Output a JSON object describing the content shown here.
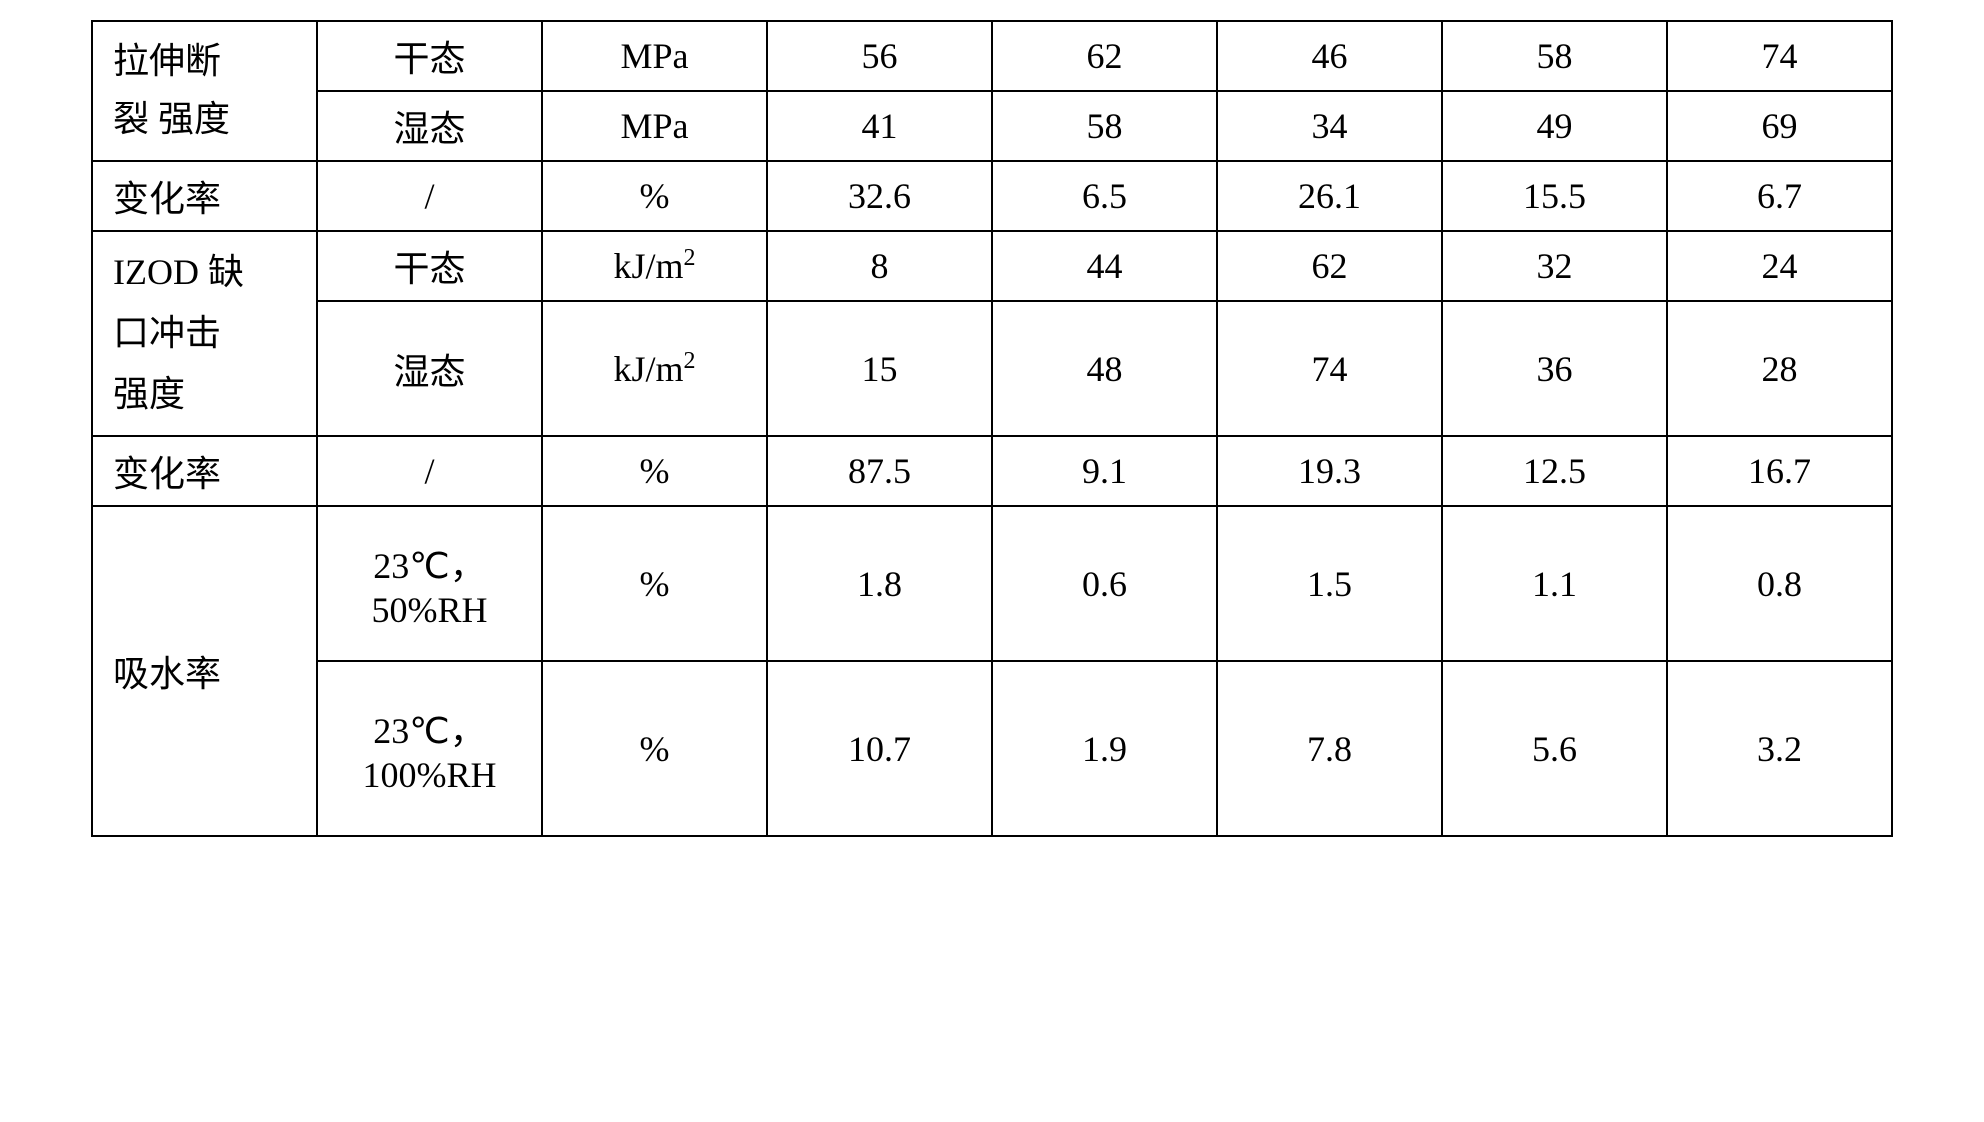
{
  "table": {
    "border_color": "#000000",
    "background_color": "#ffffff",
    "text_color": "#000000",
    "font_size_pt": 27,
    "rows": [
      {
        "property": "拉伸断",
        "condition": "干态",
        "unit": "MPa",
        "c1": "56",
        "c2": "62",
        "c3": "46",
        "c4": "58",
        "c5": "74"
      },
      {
        "property": "裂 强度",
        "condition": "湿态",
        "unit": "MPa",
        "c1": "41",
        "c2": "58",
        "c3": "34",
        "c4": "49",
        "c5": "69"
      },
      {
        "property": "变化率",
        "condition": "/",
        "unit": "%",
        "c1": "32.6",
        "c2": "6.5",
        "c3": "26.1",
        "c4": "15.5",
        "c5": "6.7"
      },
      {
        "property": "IZOD 缺",
        "condition": "干态",
        "unit_html": "kJ/m<sup>2</sup>",
        "c1": "8",
        "c2": "44",
        "c3": "62",
        "c4": "32",
        "c5": "24"
      },
      {
        "property": "口冲击\n强度",
        "condition": "湿态",
        "unit_html": "kJ/m<sup>2</sup>",
        "c1": "15",
        "c2": "48",
        "c3": "74",
        "c4": "36",
        "c5": "28"
      },
      {
        "property": "变化率",
        "condition": "/",
        "unit": "%",
        "c1": "87.5",
        "c2": "9.1",
        "c3": "19.3",
        "c4": "12.5",
        "c5": "16.7"
      },
      {
        "property": "",
        "condition": "23℃，\n50%RH",
        "unit": "%",
        "c1": "1.8",
        "c2": "0.6",
        "c3": "1.5",
        "c4": "1.1",
        "c5": "0.8"
      },
      {
        "property": "吸水率",
        "condition": "23℃，\n100%RH",
        "unit": "%",
        "c1": "10.7",
        "c2": "1.9",
        "c3": "7.8",
        "c4": "5.6",
        "c5": "3.2"
      }
    ],
    "merged_properties": {
      "tensile": "拉伸断裂 强度",
      "izod": "IZOD 缺口冲击强度",
      "absorption": "吸水率"
    }
  }
}
